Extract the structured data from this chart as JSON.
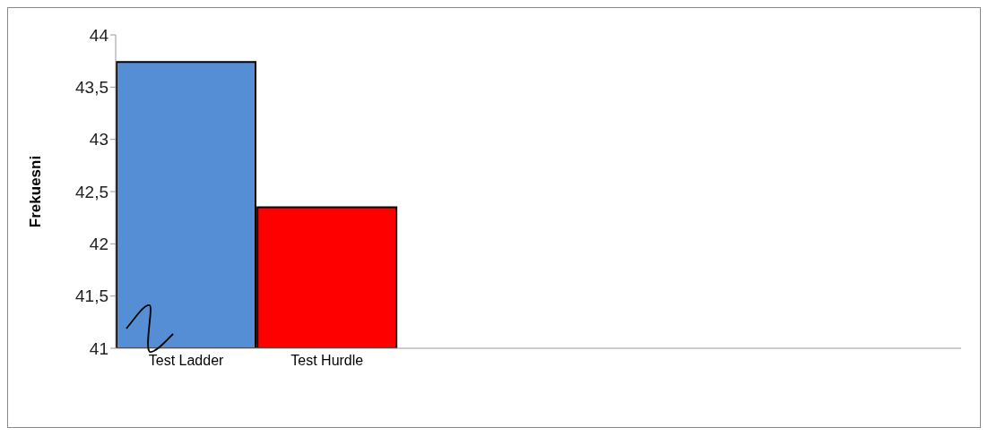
{
  "chart_data": {
    "type": "bar",
    "ylabel": "Frekuesni",
    "categories": [
      "Test Ladder",
      "Test Hurdle",
      null,
      null,
      null,
      null
    ],
    "values": [
      43.74,
      42.35,
      null,
      null,
      null,
      null
    ],
    "colors": [
      "#558ed5",
      "#ff0000",
      null,
      null,
      null,
      null
    ],
    "ylim": [
      41,
      44
    ],
    "yticks": [
      41,
      {
        "value": 41.5,
        "label": "41,5"
      },
      42,
      {
        "value": 42.5,
        "label": "42,5"
      },
      43,
      {
        "value": 43.5,
        "label": "43,5"
      },
      44
    ],
    "grid": false
  }
}
